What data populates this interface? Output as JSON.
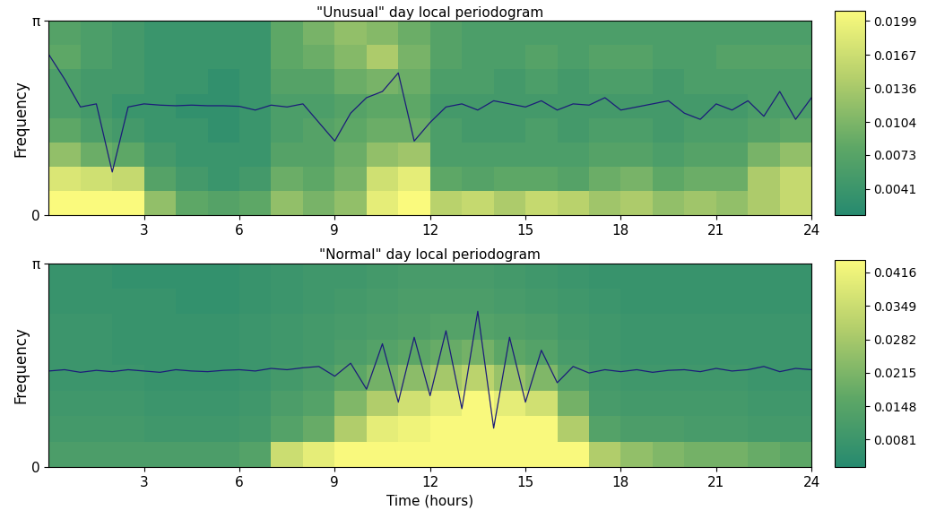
{
  "chart_data": [
    {
      "type": "heatmap",
      "title": "\"Unusual\" day local periodogram",
      "ylabel": "Frequency",
      "xlim": [
        0,
        24
      ],
      "xticks": [
        3,
        6,
        9,
        12,
        15,
        18,
        21,
        24
      ],
      "ylim": [
        0,
        3.14159
      ],
      "yticks": [
        0,
        {
          "value": 3.14159,
          "label": "π"
        }
      ],
      "cells": [
        [
          0.021,
          0.021,
          0.021,
          0.012,
          0.008,
          0.007,
          0.008,
          0.012,
          0.01,
          0.012,
          0.019,
          0.021,
          0.015,
          0.016,
          0.014,
          0.016,
          0.015,
          0.013,
          0.014,
          0.012,
          0.013,
          0.012,
          0.014,
          0.016
        ],
        [
          0.018,
          0.017,
          0.016,
          0.007,
          0.005,
          0.004,
          0.005,
          0.009,
          0.008,
          0.01,
          0.017,
          0.019,
          0.008,
          0.007,
          0.008,
          0.008,
          0.007,
          0.009,
          0.01,
          0.008,
          0.009,
          0.009,
          0.014,
          0.016
        ],
        [
          0.012,
          0.009,
          0.008,
          0.005,
          0.004,
          0.004,
          0.004,
          0.007,
          0.007,
          0.009,
          0.012,
          0.013,
          0.006,
          0.006,
          0.006,
          0.006,
          0.006,
          0.007,
          0.007,
          0.006,
          0.007,
          0.007,
          0.01,
          0.012
        ],
        [
          0.008,
          0.006,
          0.005,
          0.004,
          0.004,
          0.003,
          0.004,
          0.006,
          0.007,
          0.008,
          0.009,
          0.009,
          0.006,
          0.005,
          0.005,
          0.006,
          0.005,
          0.006,
          0.006,
          0.005,
          0.006,
          0.006,
          0.007,
          0.008
        ],
        [
          0.006,
          0.005,
          0.004,
          0.004,
          0.003,
          0.003,
          0.004,
          0.006,
          0.006,
          0.007,
          0.008,
          0.008,
          0.005,
          0.005,
          0.005,
          0.005,
          0.005,
          0.005,
          0.005,
          0.005,
          0.005,
          0.005,
          0.006,
          0.006
        ],
        [
          0.006,
          0.005,
          0.005,
          0.004,
          0.004,
          0.003,
          0.004,
          0.007,
          0.007,
          0.009,
          0.01,
          0.009,
          0.006,
          0.006,
          0.005,
          0.006,
          0.005,
          0.006,
          0.006,
          0.005,
          0.006,
          0.006,
          0.006,
          0.006
        ],
        [
          0.008,
          0.006,
          0.005,
          0.004,
          0.004,
          0.004,
          0.004,
          0.008,
          0.009,
          0.011,
          0.014,
          0.01,
          0.007,
          0.006,
          0.006,
          0.007,
          0.006,
          0.007,
          0.007,
          0.006,
          0.006,
          0.007,
          0.007,
          0.007
        ],
        [
          0.007,
          0.006,
          0.005,
          0.004,
          0.004,
          0.004,
          0.004,
          0.008,
          0.01,
          0.012,
          0.011,
          0.009,
          0.007,
          0.006,
          0.006,
          0.006,
          0.006,
          0.006,
          0.006,
          0.006,
          0.006,
          0.006,
          0.006,
          0.006
        ]
      ],
      "colorbar": {
        "range": [
          0.0016,
          0.0209
        ],
        "ticks": [
          0.0041,
          0.0073,
          0.0104,
          0.0136,
          0.0167,
          0.0199
        ]
      },
      "x": [
        0,
        0.5,
        1,
        1.5,
        2,
        2.5,
        3,
        3.5,
        4,
        4.5,
        5,
        5.5,
        6,
        6.5,
        7,
        7.5,
        8,
        8.5,
        9,
        9.5,
        10,
        10.5,
        11,
        11.5,
        12,
        12.5,
        13,
        13.5,
        14,
        14.5,
        15,
        15.5,
        16,
        16.5,
        17,
        17.5,
        18,
        18.5,
        19,
        19.5,
        20,
        20.5,
        21,
        21.5,
        22,
        22.5,
        23,
        23.5,
        24
      ],
      "series": [
        {
          "type": "line",
          "color": "#1c1c7a",
          "values": [
            2.6,
            2.2,
            1.75,
            1.8,
            0.7,
            1.75,
            1.8,
            1.78,
            1.77,
            1.78,
            1.77,
            1.77,
            1.76,
            1.7,
            1.78,
            1.75,
            1.8,
            1.5,
            1.2,
            1.65,
            1.9,
            2.0,
            2.3,
            1.2,
            1.5,
            1.75,
            1.8,
            1.7,
            1.85,
            1.8,
            1.75,
            1.85,
            1.7,
            1.8,
            1.78,
            1.9,
            1.7,
            1.75,
            1.8,
            1.85,
            1.65,
            1.55,
            1.8,
            1.7,
            1.85,
            1.6,
            2.0,
            1.55,
            1.9
          ]
        }
      ]
    },
    {
      "type": "heatmap",
      "title": "\"Normal\" day local periodogram",
      "ylabel": "Frequency",
      "xlabel": "Time (hours)",
      "xlim": [
        0,
        24
      ],
      "xticks": [
        3,
        6,
        9,
        12,
        15,
        18,
        21,
        24
      ],
      "ylim": [
        0,
        3.14159
      ],
      "yticks": [
        0,
        {
          "value": 3.14159,
          "label": "π"
        }
      ],
      "cells": [
        [
          0.012,
          0.012,
          0.012,
          0.012,
          0.012,
          0.012,
          0.014,
          0.035,
          0.04,
          0.044,
          0.044,
          0.044,
          0.044,
          0.044,
          0.044,
          0.044,
          0.044,
          0.03,
          0.025,
          0.022,
          0.02,
          0.02,
          0.018,
          0.016
        ],
        [
          0.01,
          0.01,
          0.01,
          0.009,
          0.009,
          0.009,
          0.01,
          0.014,
          0.018,
          0.03,
          0.04,
          0.042,
          0.044,
          0.044,
          0.044,
          0.044,
          0.03,
          0.014,
          0.012,
          0.012,
          0.011,
          0.011,
          0.01,
          0.01
        ],
        [
          0.009,
          0.009,
          0.009,
          0.008,
          0.008,
          0.008,
          0.009,
          0.012,
          0.014,
          0.022,
          0.03,
          0.036,
          0.04,
          0.044,
          0.04,
          0.036,
          0.02,
          0.011,
          0.01,
          0.01,
          0.01,
          0.01,
          0.009,
          0.009
        ],
        [
          0.008,
          0.008,
          0.008,
          0.007,
          0.007,
          0.007,
          0.008,
          0.01,
          0.012,
          0.016,
          0.02,
          0.024,
          0.028,
          0.032,
          0.026,
          0.022,
          0.014,
          0.01,
          0.009,
          0.009,
          0.009,
          0.009,
          0.008,
          0.008
        ],
        [
          0.008,
          0.008,
          0.007,
          0.007,
          0.007,
          0.007,
          0.008,
          0.009,
          0.01,
          0.012,
          0.014,
          0.016,
          0.018,
          0.02,
          0.016,
          0.014,
          0.011,
          0.009,
          0.008,
          0.008,
          0.008,
          0.008,
          0.008,
          0.008
        ],
        [
          0.008,
          0.008,
          0.007,
          0.007,
          0.007,
          0.007,
          0.008,
          0.009,
          0.01,
          0.011,
          0.012,
          0.013,
          0.014,
          0.014,
          0.013,
          0.012,
          0.01,
          0.009,
          0.008,
          0.008,
          0.008,
          0.008,
          0.008,
          0.008
        ],
        [
          0.007,
          0.007,
          0.007,
          0.007,
          0.006,
          0.006,
          0.007,
          0.008,
          0.009,
          0.01,
          0.011,
          0.012,
          0.012,
          0.012,
          0.011,
          0.01,
          0.009,
          0.008,
          0.007,
          0.007,
          0.007,
          0.007,
          0.007,
          0.007
        ],
        [
          0.007,
          0.007,
          0.006,
          0.006,
          0.006,
          0.006,
          0.007,
          0.008,
          0.009,
          0.009,
          0.01,
          0.011,
          0.011,
          0.011,
          0.01,
          0.009,
          0.008,
          0.007,
          0.007,
          0.007,
          0.007,
          0.007,
          0.007,
          0.007
        ]
      ],
      "colorbar": {
        "range": [
          0.0026,
          0.0442
        ],
        "ticks": [
          0.0081,
          0.0148,
          0.0215,
          0.0282,
          0.0349,
          0.0416
        ]
      },
      "x": [
        0,
        0.5,
        1,
        1.5,
        2,
        2.5,
        3,
        3.5,
        4,
        4.5,
        5,
        5.5,
        6,
        6.5,
        7,
        7.5,
        8,
        8.5,
        9,
        9.5,
        10,
        10.5,
        11,
        11.5,
        12,
        12.5,
        13,
        13.5,
        14,
        14.5,
        15,
        15.5,
        16,
        16.5,
        17,
        17.5,
        18,
        18.5,
        19,
        19.5,
        20,
        20.5,
        21,
        21.5,
        22,
        22.5,
        23,
        23.5,
        24
      ],
      "series": [
        {
          "type": "line",
          "color": "#1c1c7a",
          "values": [
            1.48,
            1.5,
            1.46,
            1.49,
            1.47,
            1.5,
            1.48,
            1.46,
            1.5,
            1.48,
            1.47,
            1.49,
            1.5,
            1.48,
            1.52,
            1.5,
            1.53,
            1.55,
            1.4,
            1.6,
            1.2,
            1.9,
            1.0,
            2.0,
            1.1,
            2.1,
            0.9,
            2.4,
            0.6,
            2.0,
            1.0,
            1.8,
            1.3,
            1.55,
            1.45,
            1.5,
            1.47,
            1.5,
            1.46,
            1.49,
            1.5,
            1.47,
            1.52,
            1.48,
            1.5,
            1.55,
            1.47,
            1.52,
            1.5
          ]
        }
      ]
    }
  ]
}
